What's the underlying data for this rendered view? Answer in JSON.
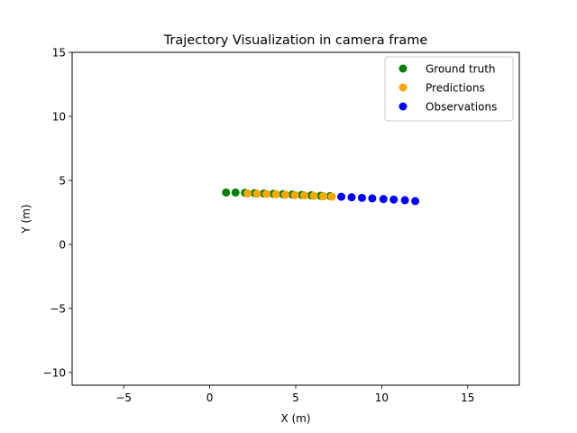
{
  "chart_data": {
    "type": "scatter",
    "title": "Trajectory Visualization in camera frame",
    "xlabel": "X (m)",
    "ylabel": "Y (m)",
    "xlim": [
      -8,
      18
    ],
    "ylim": [
      -11,
      15
    ],
    "xticks": [
      -5,
      0,
      5,
      10,
      15
    ],
    "xtick_labels": [
      "−5",
      "0",
      "5",
      "10",
      "15"
    ],
    "yticks": [
      -10,
      -5,
      0,
      5,
      10,
      15
    ],
    "ytick_labels": [
      "−10",
      "−5",
      "0",
      "5",
      "10",
      "15"
    ],
    "grid": false,
    "legend_position": "top-right",
    "series": [
      {
        "name": "Ground truth",
        "color": "#008000",
        "points": [
          [
            0.95,
            4.05
          ],
          [
            1.5,
            4.05
          ],
          [
            2.05,
            4.03
          ],
          [
            2.6,
            4.0
          ],
          [
            3.15,
            3.97
          ],
          [
            3.7,
            3.95
          ],
          [
            4.25,
            3.92
          ],
          [
            4.8,
            3.89
          ],
          [
            5.35,
            3.86
          ],
          [
            5.9,
            3.83
          ],
          [
            6.45,
            3.8
          ],
          [
            7.0,
            3.77
          ]
        ]
      },
      {
        "name": "Predictions",
        "color": "#ffa500",
        "points": [
          [
            2.2,
            3.98
          ],
          [
            2.75,
            3.96
          ],
          [
            3.3,
            3.93
          ],
          [
            3.85,
            3.91
          ],
          [
            4.4,
            3.88
          ],
          [
            4.95,
            3.85
          ],
          [
            5.5,
            3.82
          ],
          [
            6.05,
            3.79
          ],
          [
            6.6,
            3.76
          ],
          [
            7.1,
            3.73
          ]
        ]
      },
      {
        "name": "Observations",
        "color": "#0000ff",
        "points": [
          [
            7.65,
            3.72
          ],
          [
            8.25,
            3.68
          ],
          [
            8.85,
            3.63
          ],
          [
            9.45,
            3.59
          ],
          [
            10.1,
            3.54
          ],
          [
            10.7,
            3.5
          ],
          [
            11.35,
            3.45
          ],
          [
            11.95,
            3.38
          ]
        ]
      }
    ]
  }
}
